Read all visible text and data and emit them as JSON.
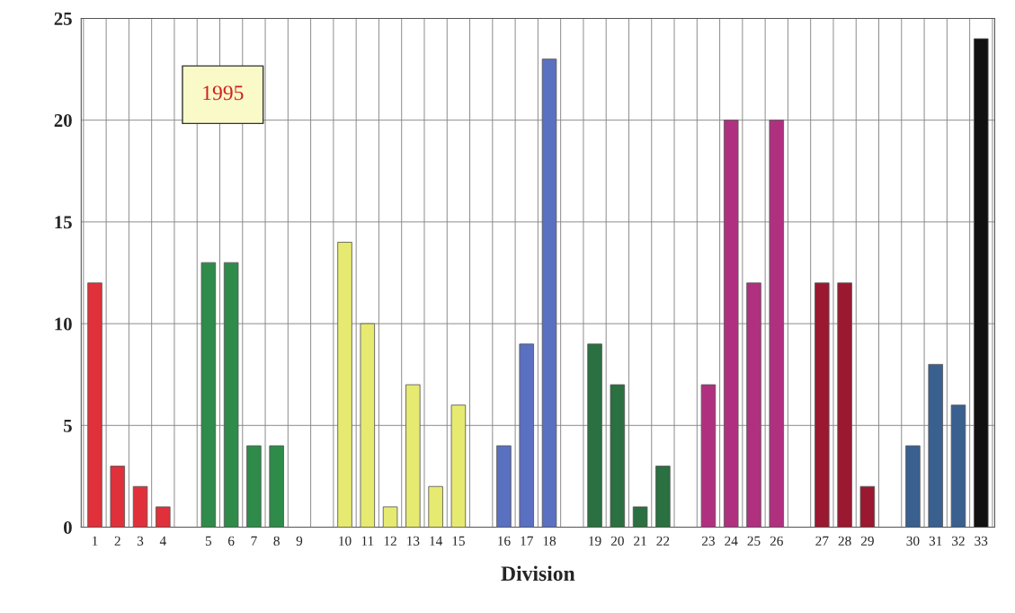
{
  "chart_data": {
    "type": "bar",
    "xlabel": "Division",
    "categories": [
      "1",
      "2",
      "3",
      "4",
      null,
      "5",
      "6",
      "7",
      "8",
      "9",
      null,
      "10",
      "11",
      "12",
      "13",
      "14",
      "15",
      null,
      "16",
      "17",
      "18",
      null,
      "19",
      "20",
      "21",
      "22",
      null,
      "23",
      "24",
      "25",
      "26",
      null,
      "27",
      "28",
      "29",
      null,
      "30",
      "31",
      "32",
      "33"
    ],
    "values": [
      12,
      3,
      2,
      1,
      null,
      13,
      13,
      4,
      4,
      null,
      null,
      14,
      10,
      1,
      7,
      2,
      6,
      null,
      4,
      9,
      23,
      null,
      9,
      7,
      1,
      3,
      null,
      7,
      20,
      12,
      20,
      null,
      12,
      12,
      2,
      null,
      4,
      8,
      6,
      24
    ],
    "colors": [
      "#e0303a",
      "#e0303a",
      "#e0303a",
      "#e0303a",
      null,
      "#2e8b4a",
      "#2e8b4a",
      "#2e8b4a",
      "#2e8b4a",
      null,
      null,
      "#e6ea70",
      "#e6ea70",
      "#e6ea70",
      "#e6ea70",
      "#e6ea70",
      "#e6ea70",
      null,
      "#5a70c0",
      "#5a70c0",
      "#5a70c0",
      null,
      "#2a7040",
      "#2a7040",
      "#2a7040",
      "#2a7040",
      null,
      "#b03080",
      "#b03080",
      "#b03080",
      "#b03080",
      null,
      "#9a1830",
      "#9a1830",
      "#9a1830",
      null,
      "#3a6090",
      "#3a6090",
      "#3a6090",
      "#111111"
    ],
    "ylim": [
      0,
      25
    ],
    "yticks": [
      0,
      5,
      10,
      15,
      20,
      25
    ],
    "grid": true,
    "annotations": [
      "1995"
    ]
  }
}
